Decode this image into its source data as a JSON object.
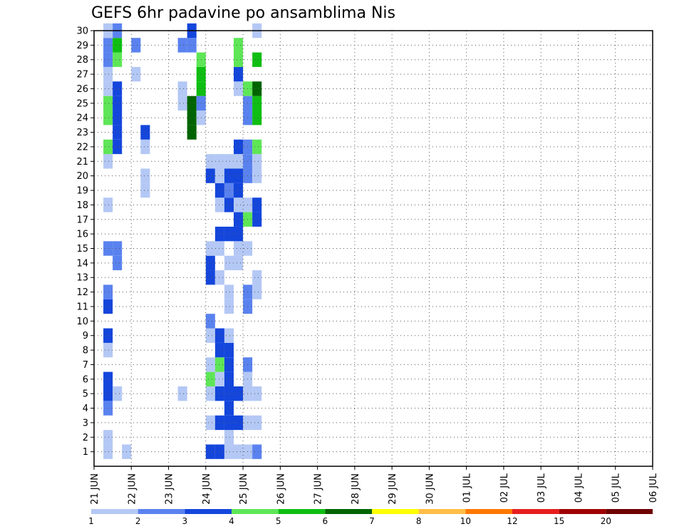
{
  "chart_data": {
    "type": "heatmap",
    "title": "GEFS 6hr padavine po ansamblima Nis",
    "xlabel": "",
    "ylabel": "",
    "x_tick_labels": [
      "21 JUN",
      "22 JUN",
      "23 JUN",
      "24 JUN",
      "25 JUN",
      "26 JUN",
      "27 JUN",
      "28 JUN",
      "29 JUN",
      "30 JUN",
      "01 JUL",
      "02 JUL",
      "03 JUL",
      "04 JUL",
      "05 JUL",
      "06 JUL"
    ],
    "y_tick_labels": [
      "1",
      "2",
      "3",
      "4",
      "5",
      "6",
      "7",
      "8",
      "9",
      "10",
      "11",
      "12",
      "13",
      "14",
      "15",
      "16",
      "17",
      "18",
      "19",
      "20",
      "21",
      "22",
      "23",
      "24",
      "25",
      "26",
      "27",
      "28",
      "29",
      "30"
    ],
    "xlim_steps": [
      0,
      60
    ],
    "ylim_members": [
      0,
      30
    ],
    "grid": true,
    "color_scale": {
      "labels": [
        "1",
        "2",
        "3",
        "4",
        "5",
        "6",
        "7",
        "8",
        "10",
        "12",
        "15",
        "20"
      ],
      "colors": [
        "#b4c8f5",
        "#5a82ef",
        "#1446dc",
        "#5ee657",
        "#0fbe12",
        "#006400",
        "#ffff00",
        "#ffbe46",
        "#ff7800",
        "#e61e1e",
        "#a00000",
        "#6e0000"
      ]
    },
    "cells": [
      [
        1,
        1,
        1
      ],
      [
        1,
        2,
        1
      ],
      [
        3,
        1,
        1
      ],
      [
        1,
        4,
        2
      ],
      [
        1,
        5,
        3
      ],
      [
        1,
        6,
        3
      ],
      [
        1,
        8,
        1
      ],
      [
        1,
        9,
        3
      ],
      [
        1,
        11,
        3
      ],
      [
        1,
        12,
        2
      ],
      [
        1,
        15,
        2
      ],
      [
        1,
        18,
        1
      ],
      [
        1,
        21,
        1
      ],
      [
        1,
        22,
        4
      ],
      [
        1,
        24,
        4
      ],
      [
        1,
        25,
        4
      ],
      [
        1,
        26,
        1
      ],
      [
        1,
        27,
        1
      ],
      [
        1,
        28,
        2
      ],
      [
        1,
        29,
        2
      ],
      [
        1,
        30,
        1
      ],
      [
        2,
        5,
        1
      ],
      [
        2,
        14,
        2
      ],
      [
        2,
        15,
        2
      ],
      [
        2,
        22,
        3
      ],
      [
        2,
        23,
        3
      ],
      [
        2,
        24,
        3
      ],
      [
        2,
        25,
        3
      ],
      [
        2,
        26,
        3
      ],
      [
        2,
        28,
        4
      ],
      [
        2,
        29,
        5
      ],
      [
        2,
        30,
        2
      ],
      [
        4,
        27,
        1
      ],
      [
        4,
        29,
        2
      ],
      [
        5,
        19,
        1
      ],
      [
        5,
        20,
        1
      ],
      [
        5,
        22,
        1
      ],
      [
        5,
        23,
        3
      ],
      [
        9,
        5,
        1
      ],
      [
        9,
        25,
        1
      ],
      [
        9,
        26,
        1
      ],
      [
        9,
        29,
        2
      ],
      [
        10,
        23,
        6
      ],
      [
        10,
        24,
        6
      ],
      [
        10,
        25,
        6
      ],
      [
        10,
        29,
        2
      ],
      [
        10,
        30,
        3
      ],
      [
        11,
        24,
        1
      ],
      [
        11,
        25,
        2
      ],
      [
        11,
        26,
        5
      ],
      [
        11,
        27,
        5
      ],
      [
        11,
        28,
        4
      ],
      [
        12,
        1,
        3
      ],
      [
        12,
        3,
        1
      ],
      [
        12,
        5,
        1
      ],
      [
        12,
        6,
        4
      ],
      [
        12,
        7,
        1
      ],
      [
        12,
        9,
        1
      ],
      [
        12,
        10,
        2
      ],
      [
        12,
        13,
        3
      ],
      [
        12,
        14,
        3
      ],
      [
        12,
        15,
        1
      ],
      [
        12,
        20,
        3
      ],
      [
        12,
        21,
        1
      ],
      [
        13,
        1,
        3
      ],
      [
        13,
        3,
        3
      ],
      [
        13,
        5,
        3
      ],
      [
        13,
        6,
        1
      ],
      [
        13,
        7,
        4
      ],
      [
        13,
        8,
        3
      ],
      [
        13,
        9,
        3
      ],
      [
        13,
        13,
        1
      ],
      [
        13,
        15,
        1
      ],
      [
        13,
        16,
        3
      ],
      [
        13,
        18,
        1
      ],
      [
        13,
        19,
        3
      ],
      [
        13,
        20,
        1
      ],
      [
        13,
        21,
        1
      ],
      [
        14,
        1,
        1
      ],
      [
        14,
        2,
        1
      ],
      [
        14,
        3,
        3
      ],
      [
        14,
        4,
        3
      ],
      [
        14,
        5,
        3
      ],
      [
        14,
        6,
        3
      ],
      [
        14,
        7,
        3
      ],
      [
        14,
        8,
        3
      ],
      [
        14,
        9,
        1
      ],
      [
        14,
        11,
        1
      ],
      [
        14,
        12,
        1
      ],
      [
        14,
        14,
        1
      ],
      [
        14,
        16,
        3
      ],
      [
        14,
        18,
        3
      ],
      [
        14,
        19,
        2
      ],
      [
        14,
        20,
        3
      ],
      [
        14,
        21,
        1
      ],
      [
        15,
        1,
        1
      ],
      [
        15,
        3,
        3
      ],
      [
        15,
        5,
        3
      ],
      [
        15,
        14,
        1
      ],
      [
        15,
        15,
        1
      ],
      [
        15,
        16,
        3
      ],
      [
        15,
        17,
        3
      ],
      [
        15,
        18,
        1
      ],
      [
        15,
        19,
        3
      ],
      [
        15,
        20,
        3
      ],
      [
        15,
        21,
        1
      ],
      [
        15,
        22,
        3
      ],
      [
        15,
        26,
        1
      ],
      [
        15,
        27,
        3
      ],
      [
        15,
        28,
        4
      ],
      [
        15,
        29,
        4
      ],
      [
        16,
        1,
        1
      ],
      [
        16,
        3,
        1
      ],
      [
        16,
        5,
        1
      ],
      [
        16,
        6,
        1
      ],
      [
        16,
        7,
        2
      ],
      [
        16,
        11,
        2
      ],
      [
        16,
        12,
        2
      ],
      [
        16,
        15,
        1
      ],
      [
        16,
        17,
        4
      ],
      [
        16,
        18,
        1
      ],
      [
        16,
        20,
        2
      ],
      [
        16,
        21,
        2
      ],
      [
        16,
        22,
        2
      ],
      [
        16,
        24,
        2
      ],
      [
        16,
        25,
        2
      ],
      [
        16,
        26,
        4
      ],
      [
        17,
        1,
        2
      ],
      [
        17,
        3,
        1
      ],
      [
        17,
        5,
        1
      ],
      [
        17,
        12,
        1
      ],
      [
        17,
        13,
        1
      ],
      [
        17,
        17,
        3
      ],
      [
        17,
        18,
        3
      ],
      [
        17,
        20,
        1
      ],
      [
        17,
        21,
        1
      ],
      [
        17,
        22,
        4
      ],
      [
        17,
        24,
        5
      ],
      [
        17,
        25,
        5
      ],
      [
        17,
        26,
        6
      ],
      [
        17,
        28,
        5
      ],
      [
        17,
        30,
        1
      ]
    ]
  }
}
